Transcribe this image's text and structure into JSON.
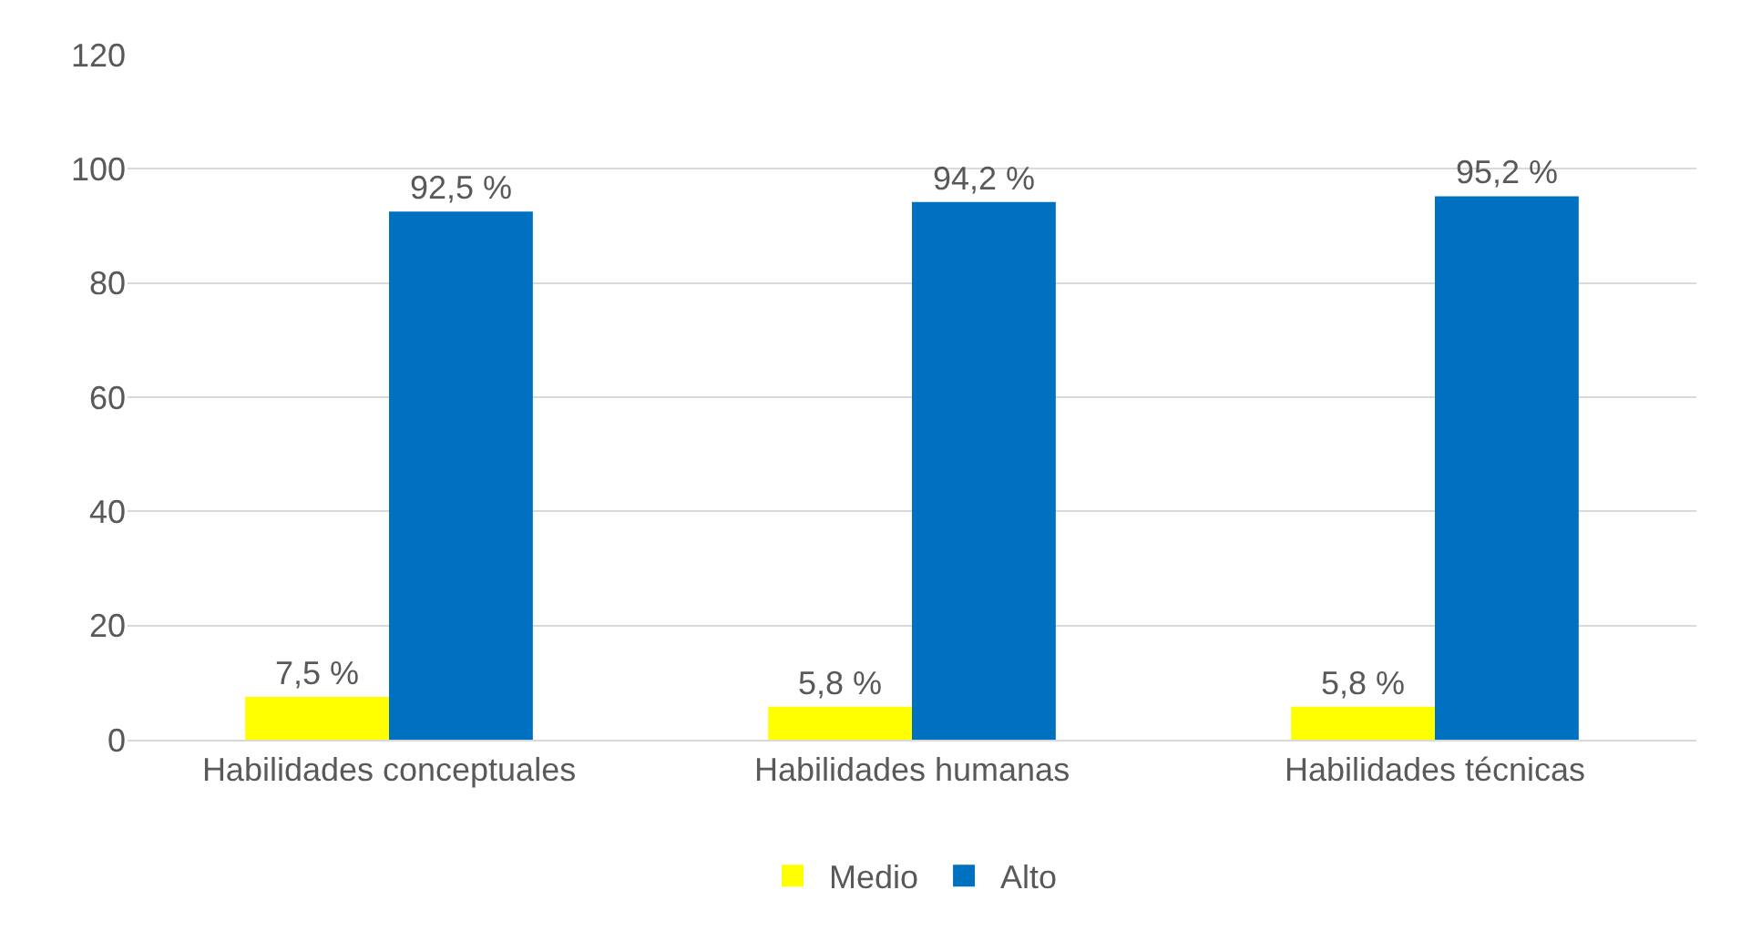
{
  "chart_data": {
    "type": "bar",
    "categories": [
      "Habilidades conceptuales",
      "Habilidades humanas",
      "Habilidades técnicas"
    ],
    "series": [
      {
        "name": "Medio",
        "color": "#ffff00",
        "values": [
          7.5,
          5.8,
          5.8
        ],
        "value_labels": [
          "7,5 %",
          "5,8 %",
          "5,8 %"
        ]
      },
      {
        "name": "Alto",
        "color": "#0070c0",
        "values": [
          92.5,
          94.2,
          95.2
        ],
        "value_labels": [
          "92,5 %",
          "94,2 %",
          "95,2 %"
        ]
      }
    ],
    "ylim": [
      0,
      120
    ],
    "yticks": [
      0,
      20,
      40,
      60,
      80,
      100,
      120
    ],
    "grid": "y",
    "legend": "bottom"
  }
}
